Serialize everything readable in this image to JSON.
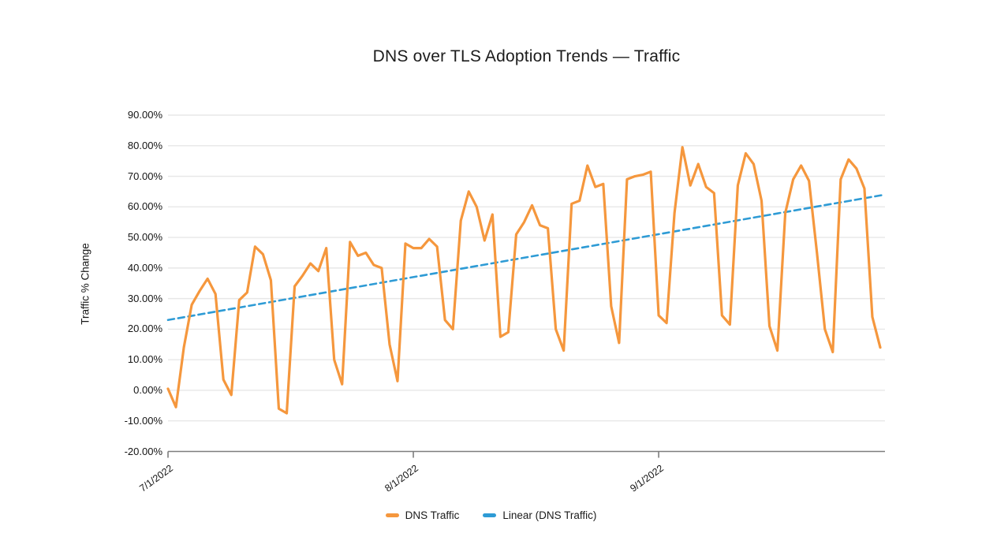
{
  "chart_data": {
    "type": "line",
    "title": "DNS over TLS Adoption Trends — Traffic",
    "ylabel": "Traffic % Change",
    "ylim": [
      -20,
      90
    ],
    "ytick_labels": [
      "90.00%",
      "80.00%",
      "70.00%",
      "60.00%",
      "50.00%",
      "40.00%",
      "30.00%",
      "20.00%",
      "10.00%",
      "0.00%",
      "-10.00%",
      "-20.00%"
    ],
    "x_tick_labels": [
      {
        "day_index": 0,
        "label": "7/1/2022"
      },
      {
        "day_index": 31,
        "label": "8/1/2022"
      },
      {
        "day_index": 62,
        "label": "9/1/2022"
      }
    ],
    "grid": "horizontal",
    "legend_position": "bottom",
    "series": [
      {
        "name": "DNS Traffic",
        "color": "#F5973D",
        "style": "solid",
        "unit": "%",
        "values": [
          0.5,
          -5.5,
          14,
          28,
          32.5,
          36.5,
          31.5,
          3.5,
          -1.5,
          29.5,
          32,
          47,
          44.5,
          36,
          -6,
          -7.5,
          34,
          37.5,
          41.5,
          39,
          46.5,
          10,
          2,
          48.5,
          44,
          45,
          41,
          40,
          15,
          3,
          48,
          46.5,
          46.5,
          49.5,
          47,
          23,
          20,
          55.5,
          65,
          60,
          49,
          57.5,
          17.5,
          19,
          51,
          55,
          60.5,
          54,
          53,
          20,
          13,
          61,
          62,
          73.5,
          66.5,
          67.5,
          27.5,
          15.5,
          69,
          70,
          70.5,
          71.5,
          24.5,
          22,
          58,
          79.5,
          67,
          74,
          66.5,
          64.5,
          24.5,
          21.5,
          67,
          77.5,
          74,
          62,
          21,
          13,
          58,
          69,
          73.5,
          68.5,
          45,
          20,
          12.5,
          69,
          75.5,
          72.5,
          66,
          24,
          14
        ]
      },
      {
        "name": "Linear (DNS Traffic)",
        "color": "#2E9BD5",
        "style": "dashed",
        "unit": "%",
        "trend": {
          "start_value": 23,
          "end_value": 64
        }
      }
    ],
    "legend": [
      {
        "label": "DNS Traffic",
        "color": "#F5973D"
      },
      {
        "label": "Linear (DNS Traffic)",
        "color": "#2E9BD5"
      }
    ],
    "colors": {
      "background": "#FFFFFF",
      "gridline": "#E7E7E7",
      "axis": "#7D7D7D",
      "text": "#141414"
    }
  }
}
